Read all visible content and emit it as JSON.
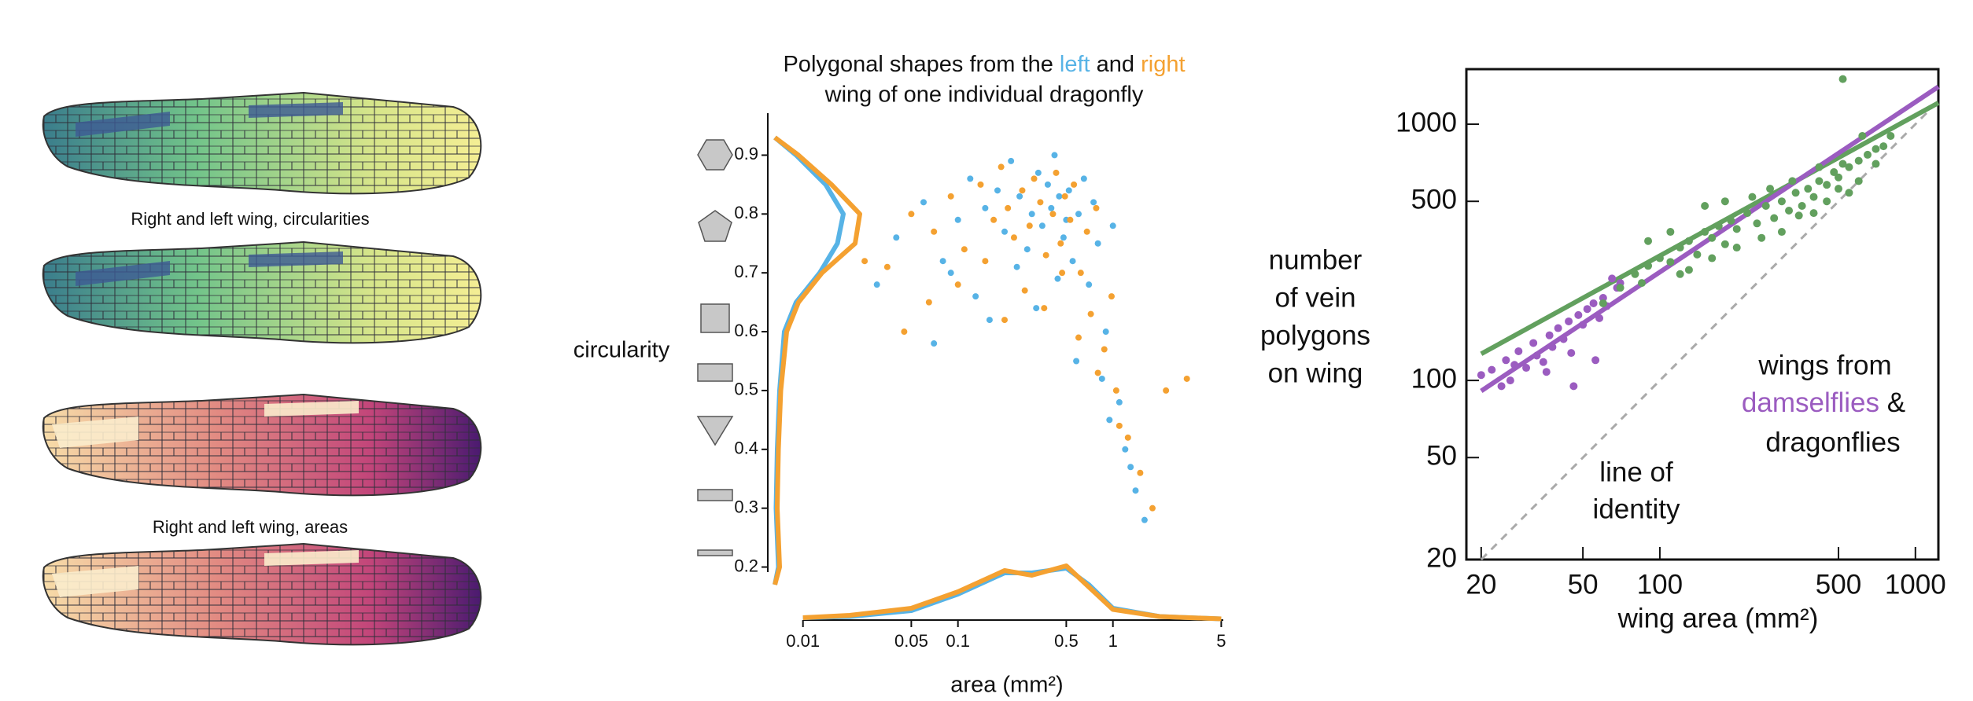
{
  "wing_labels": [
    "Right and left wing, circularities",
    "Right and left wing, areas"
  ],
  "chart_data": [
    {
      "type": "scatter",
      "title_parts": [
        "Polygonal shapes from the",
        "and",
        "wing of one individual dragonfly"
      ],
      "xlabel": "area (mm²)",
      "ylabel": "circularity",
      "xscale": "log",
      "yscale": "linear",
      "xlim": [
        0.006,
        6
      ],
      "ylim": [
        0.17,
        0.95
      ],
      "xticks": [
        0.01,
        0.05,
        0.1,
        0.5,
        1,
        5
      ],
      "yticks": [
        0.2,
        0.3,
        0.4,
        0.5,
        0.6,
        0.7,
        0.8,
        0.9
      ],
      "series": [
        {
          "name": "left",
          "color": "#57b3e6",
          "x": [
            0.04,
            0.06,
            0.08,
            0.1,
            0.12,
            0.15,
            0.18,
            0.2,
            0.22,
            0.25,
            0.28,
            0.3,
            0.33,
            0.35,
            0.38,
            0.4,
            0.42,
            0.45,
            0.48,
            0.5,
            0.52,
            0.55,
            0.6,
            0.65,
            0.7,
            0.75,
            0.8,
            0.9,
            1.0,
            1.1,
            1.2,
            1.4,
            0.07,
            0.09,
            0.13,
            0.16,
            0.24,
            0.32,
            0.44,
            0.58,
            0.85,
            0.95,
            1.3,
            0.03,
            1.6
          ],
          "values": [
            0.76,
            0.82,
            0.72,
            0.79,
            0.86,
            0.81,
            0.84,
            0.77,
            0.89,
            0.83,
            0.74,
            0.8,
            0.87,
            0.78,
            0.85,
            0.81,
            0.9,
            0.83,
            0.76,
            0.79,
            0.84,
            0.72,
            0.8,
            0.86,
            0.68,
            0.82,
            0.75,
            0.6,
            0.78,
            0.48,
            0.4,
            0.33,
            0.58,
            0.7,
            0.66,
            0.62,
            0.71,
            0.64,
            0.69,
            0.55,
            0.52,
            0.45,
            0.37,
            0.68,
            0.28
          ]
        },
        {
          "name": "right",
          "color": "#f4a131",
          "x": [
            0.035,
            0.05,
            0.07,
            0.09,
            0.11,
            0.14,
            0.17,
            0.19,
            0.21,
            0.23,
            0.26,
            0.29,
            0.31,
            0.34,
            0.37,
            0.41,
            0.43,
            0.46,
            0.49,
            0.53,
            0.56,
            0.62,
            0.68,
            0.72,
            0.78,
            0.88,
            0.98,
            1.05,
            1.25,
            1.5,
            2.2,
            0.045,
            0.065,
            0.1,
            0.15,
            0.2,
            0.27,
            0.36,
            0.47,
            0.6,
            0.8,
            1.1,
            1.8,
            3.0,
            0.025
          ],
          "values": [
            0.71,
            0.8,
            0.77,
            0.83,
            0.74,
            0.85,
            0.79,
            0.88,
            0.81,
            0.76,
            0.84,
            0.78,
            0.86,
            0.82,
            0.73,
            0.8,
            0.87,
            0.75,
            0.83,
            0.79,
            0.85,
            0.7,
            0.77,
            0.63,
            0.81,
            0.57,
            0.66,
            0.5,
            0.42,
            0.36,
            0.5,
            0.6,
            0.65,
            0.68,
            0.72,
            0.62,
            0.67,
            0.64,
            0.7,
            0.59,
            0.53,
            0.44,
            0.3,
            0.52,
            0.72
          ]
        }
      ],
      "x_density": {
        "x": [
          0.01,
          0.02,
          0.05,
          0.1,
          0.2,
          0.3,
          0.5,
          0.7,
          1,
          2,
          5
        ],
        "values": [
          [
            0.02,
            0.03,
            0.08,
            0.22,
            0.4,
            0.4,
            0.44,
            0.3,
            0.1,
            0.03,
            0.01
          ],
          [
            0.02,
            0.04,
            0.1,
            0.24,
            0.42,
            0.38,
            0.46,
            0.28,
            0.09,
            0.03,
            0.01
          ]
        ]
      },
      "y_density": {
        "y": [
          0.17,
          0.2,
          0.3,
          0.4,
          0.5,
          0.6,
          0.65,
          0.7,
          0.75,
          0.8,
          0.85,
          0.9,
          0.93
        ],
        "values": [
          [
            0.02,
            0.05,
            0.03,
            0.04,
            0.06,
            0.1,
            0.2,
            0.4,
            0.55,
            0.6,
            0.45,
            0.2,
            0.02
          ],
          [
            0.02,
            0.06,
            0.04,
            0.05,
            0.07,
            0.12,
            0.22,
            0.42,
            0.7,
            0.74,
            0.5,
            0.22,
            0.02
          ]
        ]
      }
    },
    {
      "type": "scatter",
      "xlabel": "wing area (mm²)",
      "ylabel": [
        "number",
        "of vein",
        "polygons",
        "on wing"
      ],
      "xscale": "log",
      "yscale": "log",
      "xlim": [
        17.5,
        1230
      ],
      "ylim": [
        20,
        1640
      ],
      "xticks": [
        20,
        50,
        100,
        500,
        1000
      ],
      "yticks": [
        20,
        50,
        100,
        500,
        1000
      ],
      "legend_title": "wings from",
      "legend_joiner": "&",
      "identity_label": [
        "line of",
        "identity"
      ],
      "series": [
        {
          "name": "damselflies",
          "color": "#9b5cc0",
          "x": [
            20,
            22,
            24,
            25,
            27,
            28,
            30,
            32,
            33,
            35,
            37,
            38,
            40,
            42,
            44,
            45,
            48,
            50,
            52,
            55,
            58,
            60,
            62,
            65,
            68,
            70,
            26,
            36,
            46,
            56
          ],
          "values": [
            105,
            110,
            95,
            120,
            115,
            130,
            112,
            140,
            125,
            118,
            150,
            135,
            160,
            145,
            170,
            128,
            180,
            165,
            190,
            200,
            175,
            210,
            195,
            250,
            230,
            240,
            100,
            108,
            95,
            120
          ]
        },
        {
          "name": "dragonflies",
          "color": "#62a05e",
          "x": [
            60,
            70,
            80,
            90,
            100,
            110,
            120,
            130,
            140,
            150,
            160,
            170,
            180,
            190,
            200,
            220,
            240,
            260,
            280,
            300,
            320,
            340,
            360,
            380,
            400,
            420,
            450,
            480,
            500,
            520,
            550,
            600,
            650,
            700,
            750,
            800,
            90,
            110,
            130,
            160,
            200,
            250,
            300,
            350,
            400,
            450,
            500,
            550,
            600,
            700,
            150,
            180,
            230,
            270,
            330,
            420,
            520,
            620,
            85,
            120
          ],
          "values": [
            200,
            230,
            260,
            280,
            300,
            290,
            330,
            350,
            310,
            380,
            360,
            400,
            340,
            420,
            390,
            450,
            410,
            480,
            430,
            500,
            460,
            540,
            480,
            560,
            520,
            600,
            580,
            650,
            620,
            700,
            680,
            720,
            760,
            800,
            820,
            900,
            350,
            380,
            270,
            300,
            330,
            360,
            380,
            440,
            450,
            500,
            560,
            540,
            600,
            700,
            480,
            500,
            520,
            560,
            600,
            680,
            1500,
            900,
            240,
            260
          ]
        }
      ],
      "lines": [
        {
          "color": "#aaaaaa",
          "dash": true,
          "x": [
            20,
            1230
          ],
          "values": [
            20,
            1230
          ]
        },
        {
          "color": "#62a05e",
          "dash": false,
          "x": [
            20,
            1230
          ],
          "values": [
            127,
            1212
          ]
        },
        {
          "color": "#9b5cc0",
          "dash": false,
          "x": [
            20,
            1230
          ],
          "values": [
            91,
            1400
          ]
        }
      ]
    }
  ]
}
